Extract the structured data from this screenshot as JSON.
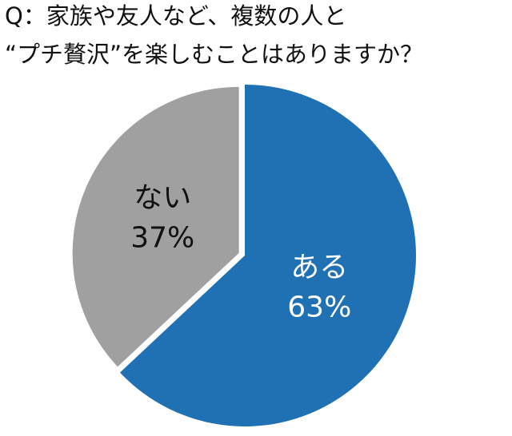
{
  "chart_data": {
    "type": "pie",
    "title": [
      "Q：家族や友人など、複数の人と",
      "“プチ贅沢”を楽しむことはありますか？"
    ],
    "categories": [
      "ある",
      "ない"
    ],
    "values": [
      63,
      37
    ],
    "value_labels": [
      "63%",
      "37%"
    ],
    "colors": [
      "#1f71b3",
      "#a0a0a0"
    ],
    "label_colors": [
      "#ffffff",
      "#111111"
    ]
  }
}
